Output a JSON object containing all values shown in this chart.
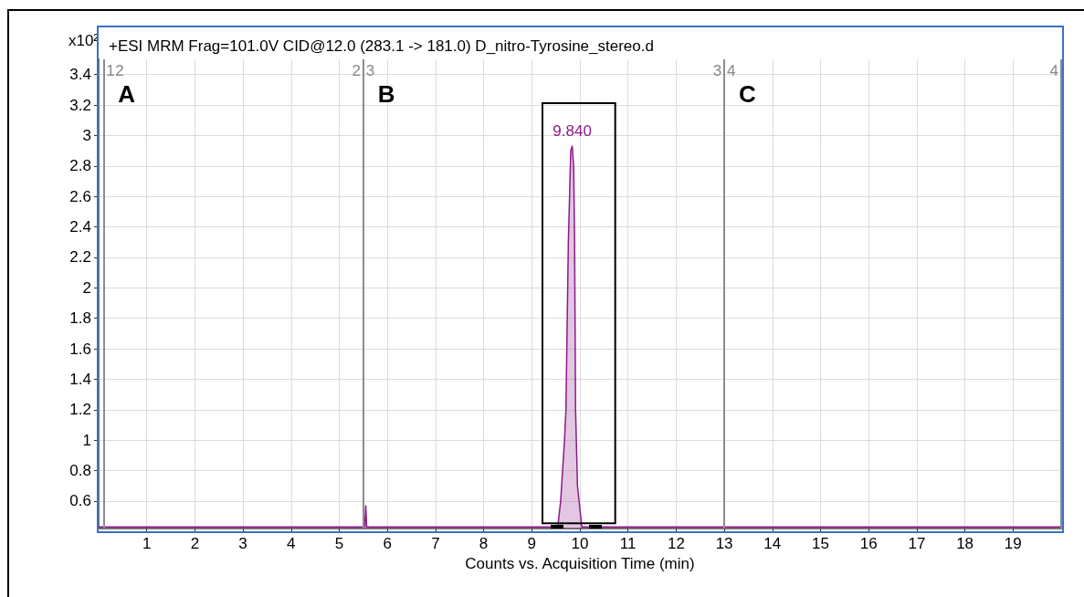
{
  "chart_data": {
    "type": "area",
    "title": "+ESI MRM Frag=101.0V CID@12.0 (283.1 -> 181.0) D_nitro-Tyrosine_stereo.d",
    "xlabel": "Counts vs. Acquisition Time (min)",
    "ylabel": "x10²",
    "x": [
      0,
      5.5,
      5.53,
      5.55,
      5.57,
      9.54,
      9.6,
      9.68,
      9.71,
      9.76,
      9.81,
      9.84,
      9.87,
      9.89,
      9.91,
      9.95,
      10.04,
      20
    ],
    "series": [
      {
        "color": "#8b1a8b",
        "values": [
          0.43,
          0.43,
          0.43,
          0.57,
          0.43,
          0.43,
          0.6,
          1.0,
          1.2,
          2.3,
          2.9,
          2.93,
          2.8,
          2.3,
          1.2,
          0.7,
          0.43,
          0.43
        ]
      }
    ],
    "xlim": [
      0,
      20
    ],
    "xticks": [
      1,
      2,
      3,
      4,
      5,
      6,
      7,
      8,
      9,
      10,
      11,
      12,
      13,
      14,
      15,
      16,
      17,
      18,
      19
    ],
    "ylim": [
      0.42,
      3.5
    ],
    "yticks": [
      0.6,
      0.8,
      1,
      1.2,
      1.4,
      1.6,
      1.8,
      2,
      2.2,
      2.4,
      2.6,
      2.8,
      3,
      3.2,
      3.4
    ],
    "grid": true,
    "ref_lines": [
      {
        "axis": "x",
        "value": 0.1,
        "color": "#8c8c8c"
      },
      {
        "axis": "x",
        "value": 5.5,
        "color": "#8c8c8c"
      },
      {
        "axis": "x",
        "value": 13,
        "color": "#8c8c8c"
      },
      {
        "axis": "x",
        "value": 20,
        "color": "#8c8c8c"
      }
    ],
    "annotations": [
      {
        "text": "9.840",
        "x": 9.84,
        "y": 2.93
      },
      {
        "text": "1",
        "x": 0.1
      },
      {
        "text": "2",
        "x": 0.1
      },
      {
        "text": "2",
        "x": 5.5
      },
      {
        "text": "3",
        "x": 5.5
      },
      {
        "text": "3",
        "x": 13
      },
      {
        "text": "4",
        "x": 13
      },
      {
        "text": "4",
        "x": 20
      },
      "A",
      "B",
      "C"
    ]
  }
}
